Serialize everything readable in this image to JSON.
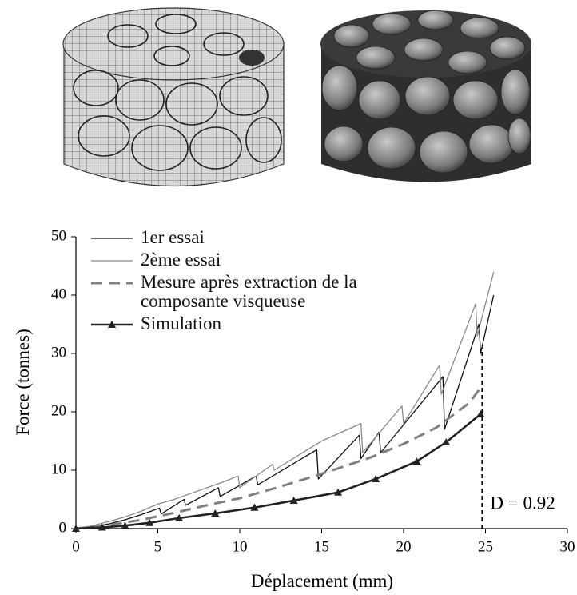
{
  "chart_data": {
    "type": "line",
    "xlabel": "Déplacement (mm)",
    "ylabel": "Force (tonnes)",
    "xlim": [
      0,
      30
    ],
    "xticks": [
      0,
      5,
      10,
      15,
      20,
      25,
      30
    ],
    "ylim": [
      0,
      50
    ],
    "yticks": [
      0,
      10,
      20,
      30,
      40,
      50
    ],
    "grid": false,
    "series": [
      {
        "name": "1er essai",
        "color": "#111111",
        "width": 1.3,
        "style": "solid",
        "marker": "none",
        "x": [
          0,
          1,
          2,
          3,
          4,
          5.1,
          5.2,
          6.6,
          6.7,
          8.7,
          8.8,
          11,
          11.1,
          14.7,
          14.8,
          17.3,
          17.4,
          18.5,
          18.6,
          22.4,
          22.5,
          24.6,
          24.7,
          25.5
        ],
        "values": [
          0,
          0.3,
          0.8,
          1.5,
          2.4,
          3.5,
          2.5,
          5,
          4,
          7,
          5.5,
          9,
          7.5,
          13.5,
          8.5,
          16,
          12,
          16.5,
          13,
          26,
          17,
          35,
          30,
          40
        ]
      },
      {
        "name": "2ème essai",
        "color": "#8a8a8a",
        "width": 1.3,
        "style": "solid",
        "marker": "none",
        "x": [
          0,
          1,
          2,
          3,
          4,
          5,
          6,
          7,
          8,
          9,
          9.9,
          10,
          12,
          12.1,
          15,
          17.4,
          17.5,
          19.9,
          20,
          22.2,
          22.3,
          24.4,
          24.5,
          25.5
        ],
        "values": [
          0,
          0.5,
          1.2,
          2,
          3,
          4.2,
          5,
          6,
          7,
          8,
          9,
          7,
          11,
          10,
          15,
          18,
          13,
          21,
          18,
          28,
          23,
          38.5,
          33,
          44
        ]
      },
      {
        "name": "Mesure après extraction de la composante visqueuse",
        "color": "#808080",
        "width": 3,
        "style": "dashed",
        "marker": "none",
        "x": [
          0,
          2,
          4,
          6,
          8,
          10,
          12,
          14,
          16,
          18,
          20,
          22,
          24,
          24.8
        ],
        "values": [
          0,
          0.6,
          1.5,
          2.7,
          4,
          5.2,
          6.8,
          8.5,
          10.3,
          12.2,
          14.5,
          17.3,
          21.5,
          24.5
        ]
      },
      {
        "name": "Simulation",
        "color": "#222222",
        "width": 2.6,
        "style": "solid",
        "marker": "triangle",
        "x": [
          0,
          1.6,
          3,
          4.5,
          6.3,
          8.5,
          10.9,
          13.3,
          16,
          18.3,
          20.8,
          22.6,
          24.7
        ],
        "values": [
          0,
          0.2,
          0.5,
          1,
          1.8,
          2.6,
          3.6,
          4.8,
          6.2,
          8.5,
          11.5,
          14.8,
          19.6
        ]
      }
    ],
    "annotation": {
      "text": "D = 0.92",
      "x": 24.8,
      "y": 31
    }
  }
}
